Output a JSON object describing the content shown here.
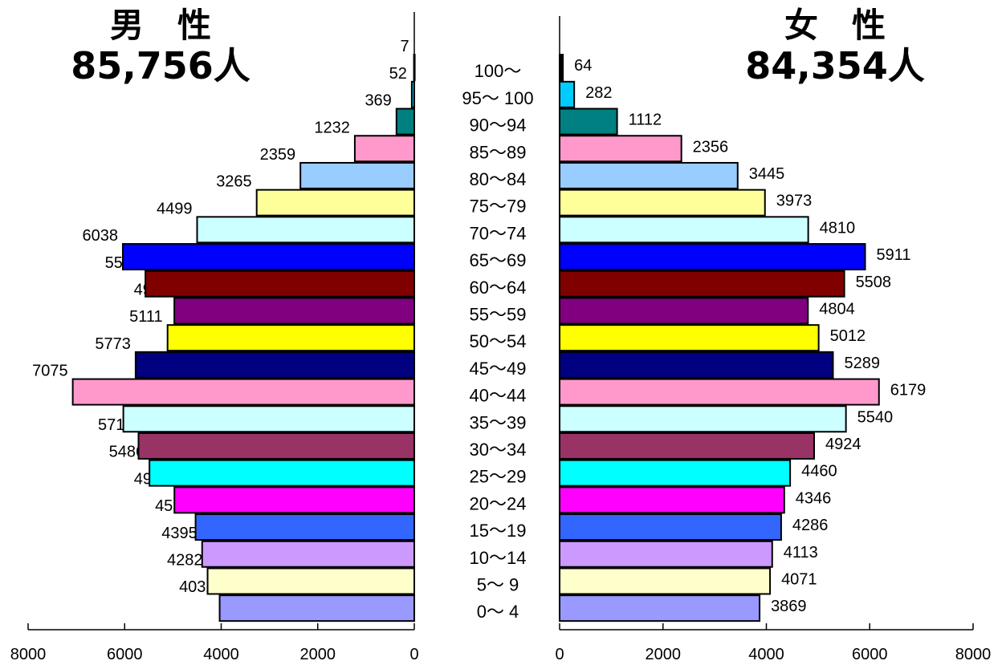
{
  "chart_data": {
    "type": "bar",
    "male_title": "男　性",
    "male_total": "85,756人",
    "female_title": "女　性",
    "female_total": "84,354人",
    "age_groups": [
      "0～ 4",
      "5～ 9",
      "10～14",
      "15～19",
      "20～24",
      "25～29",
      "30～34",
      "35～39",
      "40～44",
      "45～49",
      "50～54",
      "55～59",
      "60～64",
      "65～69",
      "70～74",
      "75～79",
      "80～84",
      "85～89",
      "90～94",
      "95～ 100",
      "100～"
    ],
    "series": [
      {
        "name": "男　性",
        "values": [
          4032,
          4282,
          4395,
          4531,
          4969,
          5486,
          5713,
          6027,
          7075,
          5773,
          5111,
          4971,
          5570,
          6038,
          4499,
          3265,
          2359,
          1232,
          369,
          52,
          7
        ]
      },
      {
        "name": "女　性",
        "values": [
          3869,
          4071,
          4113,
          4286,
          4346,
          4460,
          4924,
          5540,
          6179,
          5289,
          5012,
          4804,
          5508,
          5911,
          4810,
          3973,
          3445,
          2356,
          1112,
          282,
          64
        ]
      }
    ],
    "colors": [
      "#9999ff",
      "#ffffcc",
      "#cc99ff",
      "#3366ff",
      "#ff00ff",
      "#00ffff",
      "#993366",
      "#ccffff",
      "#ff99cc",
      "#000080",
      "#ffff00",
      "#800080",
      "#800000",
      "#0000ff",
      "#ccffff",
      "#ffff99",
      "#99ccff",
      "#ff99cc",
      "#008080",
      "#00ccff",
      "#000000"
    ],
    "male_axis": {
      "ticks": [
        8000,
        6000,
        4000,
        2000,
        0
      ],
      "xlim": [
        8000,
        0
      ]
    },
    "female_axis": {
      "ticks": [
        0,
        2000,
        4000,
        6000,
        8000
      ],
      "xlim": [
        0,
        8000
      ]
    }
  }
}
